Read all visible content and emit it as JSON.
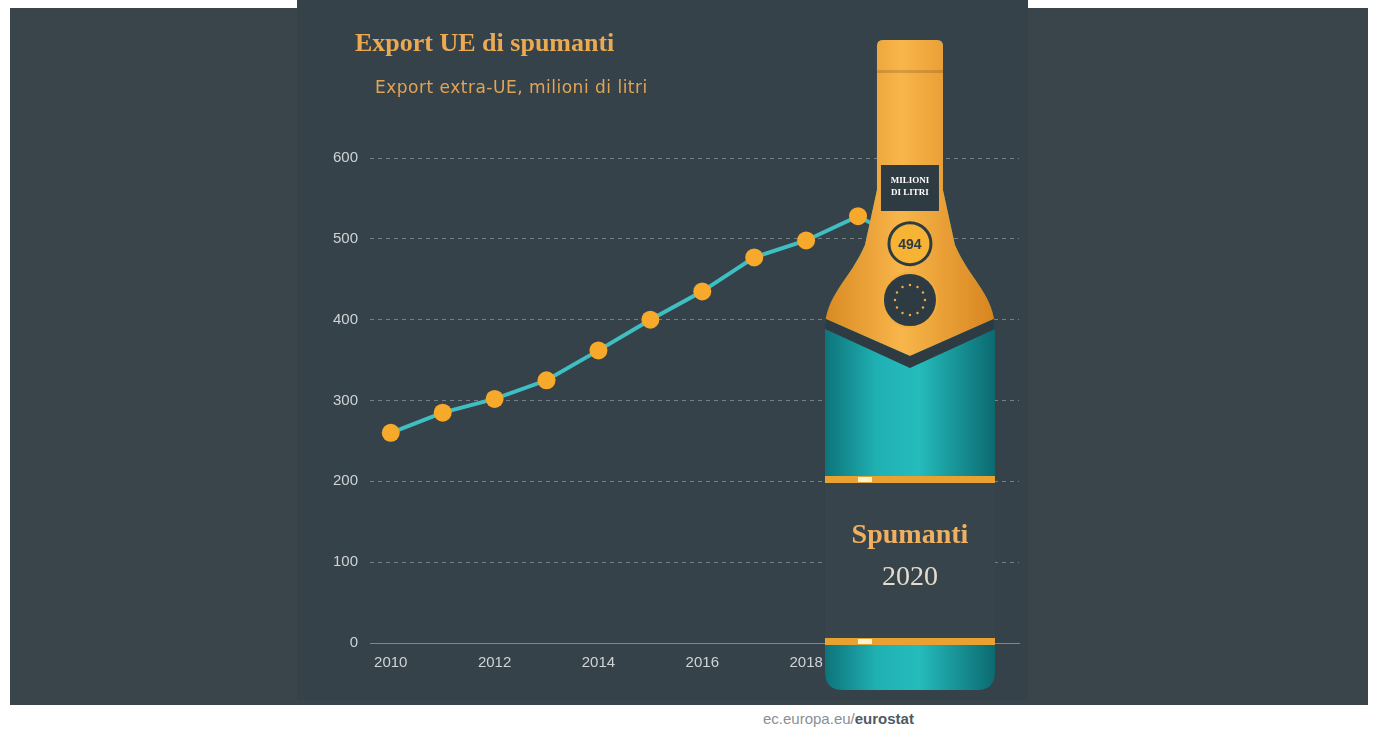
{
  "chart_data": {
    "type": "line",
    "title": "Export UE di spumanti",
    "subtitle": "Export extra-UE, milioni di litri",
    "x": [
      2010,
      2011,
      2012,
      2013,
      2014,
      2015,
      2016,
      2017,
      2018,
      2019,
      2020
    ],
    "values": [
      260,
      285,
      302,
      325,
      362,
      400,
      435,
      477,
      498,
      528,
      494
    ],
    "value_labels": [
      null,
      null,
      null,
      null,
      null,
      null,
      null,
      null,
      null,
      null,
      "494"
    ],
    "color": "#3fbfc2",
    "marker": "circle",
    "xlim": [
      2009.6,
      2022.1
    ],
    "xticks": [
      2010,
      2012,
      2014,
      2016,
      2018
    ],
    "ylim": [
      0,
      600
    ],
    "yticks": [
      0,
      100,
      200,
      300,
      400,
      500,
      600
    ],
    "grid": true,
    "annotations": {
      "unit": "MILIONI DI LITRI",
      "label": "Spumanti",
      "year": "2020"
    },
    "source": "ec.europa.eu/eurostat"
  }
}
